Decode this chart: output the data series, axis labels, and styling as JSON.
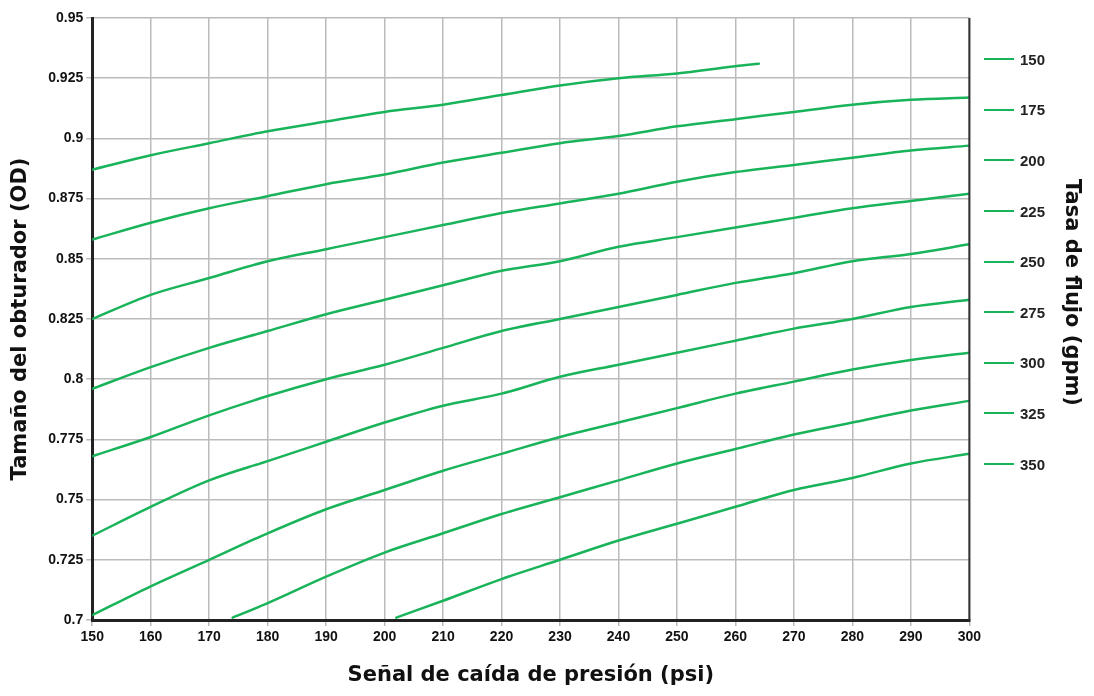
{
  "chart_data": {
    "type": "line",
    "xlabel": "Señal de caída de presión (psi)",
    "ylabel": "Tamaño del obturador (OD)",
    "legend_title": "Tasa de flujo (gpm)",
    "legend": "right",
    "grid": true,
    "marker": "none",
    "line_style": "solid",
    "xlim": [
      150,
      300
    ],
    "xticks": [
      150,
      160,
      170,
      180,
      190,
      200,
      210,
      220,
      230,
      240,
      250,
      260,
      270,
      280,
      290,
      300
    ],
    "ylim": [
      0.7,
      0.95
    ],
    "yticks": [
      0.7,
      0.725,
      0.75,
      0.775,
      0.8,
      0.825,
      0.85,
      0.875,
      0.9,
      0.925,
      0.95
    ],
    "series": [
      {
        "name": "150",
        "color": "#19b35a",
        "x": [
          150,
          160,
          170,
          180,
          190,
          200,
          210,
          220,
          230,
          240,
          250,
          260,
          264
        ],
        "values": [
          0.887,
          0.893,
          0.898,
          0.903,
          0.907,
          0.911,
          0.914,
          0.918,
          0.922,
          0.925,
          0.927,
          0.93,
          0.931
        ]
      },
      {
        "name": "175",
        "color": "#19b35a",
        "x": [
          150,
          160,
          170,
          180,
          190,
          200,
          210,
          220,
          230,
          240,
          250,
          260,
          270,
          280,
          290,
          300
        ],
        "values": [
          0.858,
          0.865,
          0.871,
          0.876,
          0.881,
          0.885,
          0.89,
          0.894,
          0.898,
          0.901,
          0.905,
          0.908,
          0.911,
          0.914,
          0.916,
          0.917
        ]
      },
      {
        "name": "200",
        "color": "#19b35a",
        "x": [
          150,
          160,
          170,
          180,
          190,
          200,
          210,
          220,
          230,
          240,
          250,
          260,
          270,
          280,
          290,
          300
        ],
        "values": [
          0.825,
          0.835,
          0.842,
          0.849,
          0.854,
          0.859,
          0.864,
          0.869,
          0.873,
          0.877,
          0.882,
          0.886,
          0.889,
          0.892,
          0.895,
          0.897
        ]
      },
      {
        "name": "225",
        "color": "#19b35a",
        "x": [
          150,
          160,
          170,
          180,
          190,
          200,
          210,
          220,
          230,
          240,
          250,
          260,
          270,
          280,
          290,
          300
        ],
        "values": [
          0.796,
          0.805,
          0.813,
          0.82,
          0.827,
          0.833,
          0.839,
          0.845,
          0.849,
          0.855,
          0.859,
          0.863,
          0.867,
          0.871,
          0.874,
          0.877
        ]
      },
      {
        "name": "250",
        "color": "#19b35a",
        "x": [
          150,
          160,
          170,
          180,
          190,
          200,
          210,
          220,
          230,
          240,
          250,
          260,
          270,
          280,
          290,
          300
        ],
        "values": [
          0.768,
          0.776,
          0.785,
          0.793,
          0.8,
          0.806,
          0.813,
          0.82,
          0.825,
          0.83,
          0.835,
          0.84,
          0.844,
          0.849,
          0.852,
          0.856
        ]
      },
      {
        "name": "275",
        "color": "#19b35a",
        "x": [
          150,
          160,
          170,
          180,
          190,
          200,
          210,
          220,
          230,
          240,
          250,
          260,
          270,
          280,
          290,
          300
        ],
        "values": [
          0.735,
          0.747,
          0.758,
          0.766,
          0.774,
          0.782,
          0.789,
          0.794,
          0.801,
          0.806,
          0.811,
          0.816,
          0.821,
          0.825,
          0.83,
          0.833
        ]
      },
      {
        "name": "300",
        "color": "#19b35a",
        "x": [
          150,
          160,
          170,
          180,
          190,
          200,
          210,
          220,
          230,
          240,
          250,
          260,
          270,
          280,
          290,
          300
        ],
        "values": [
          0.702,
          0.714,
          0.725,
          0.736,
          0.746,
          0.754,
          0.762,
          0.769,
          0.776,
          0.782,
          0.788,
          0.794,
          0.799,
          0.804,
          0.808,
          0.811
        ]
      },
      {
        "name": "325",
        "color": "#19b35a",
        "x": [
          174,
          180,
          190,
          200,
          210,
          220,
          230,
          240,
          250,
          260,
          270,
          280,
          290,
          300
        ],
        "values": [
          0.701,
          0.707,
          0.718,
          0.728,
          0.736,
          0.744,
          0.751,
          0.758,
          0.765,
          0.771,
          0.777,
          0.782,
          0.787,
          0.791
        ]
      },
      {
        "name": "350",
        "color": "#19b35a",
        "x": [
          202,
          210,
          220,
          230,
          240,
          250,
          260,
          270,
          280,
          290,
          300
        ],
        "values": [
          0.701,
          0.708,
          0.717,
          0.725,
          0.733,
          0.74,
          0.747,
          0.754,
          0.759,
          0.765,
          0.769
        ]
      }
    ]
  }
}
